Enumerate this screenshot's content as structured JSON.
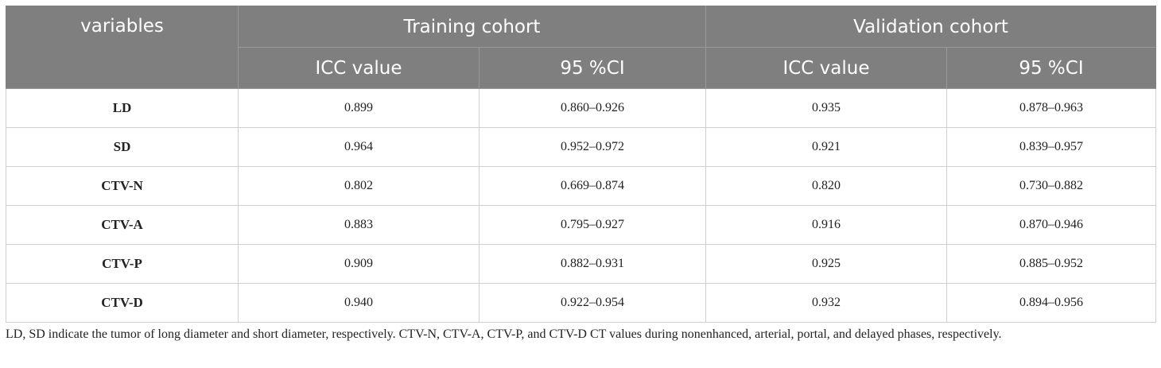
{
  "table": {
    "header": {
      "variables": "variables",
      "training_cohort": "Training cohort",
      "validation_cohort": "Validation cohort",
      "icc_value": "ICC value",
      "ci_95": "95 %CI"
    },
    "rows": [
      {
        "variable": "LD",
        "train_icc": "0.899",
        "train_ci": "0.860–0.926",
        "val_icc": "0.935",
        "val_ci": "0.878–0.963"
      },
      {
        "variable": "SD",
        "train_icc": "0.964",
        "train_ci": "0.952–0.972",
        "val_icc": "0.921",
        "val_ci": "0.839–0.957"
      },
      {
        "variable": "CTV-N",
        "train_icc": "0.802",
        "train_ci": "0.669–0.874",
        "val_icc": "0.820",
        "val_ci": "0.730–0.882"
      },
      {
        "variable": "CTV-A",
        "train_icc": "0.883",
        "train_ci": "0.795–0.927",
        "val_icc": "0.916",
        "val_ci": "0.870–0.946"
      },
      {
        "variable": "CTV-P",
        "train_icc": "0.909",
        "train_ci": "0.882–0.931",
        "val_icc": "0.925",
        "val_ci": "0.885–0.952"
      },
      {
        "variable": "CTV-D",
        "train_icc": "0.940",
        "train_ci": "0.922–0.954",
        "val_icc": "0.932",
        "val_ci": "0.894–0.956"
      }
    ]
  },
  "footnote": "LD, SD indicate the tumor of long diameter and short diameter, respectively. CTV-N, CTV-A, CTV-P, and CTV-D CT values during nonenhanced, arterial, portal, and delayed phases, respectively.",
  "colors": {
    "header_bg": "#7f7f7f",
    "header_text": "#ffffff",
    "body_text": "#222222",
    "grid": "#cfcfcf"
  }
}
